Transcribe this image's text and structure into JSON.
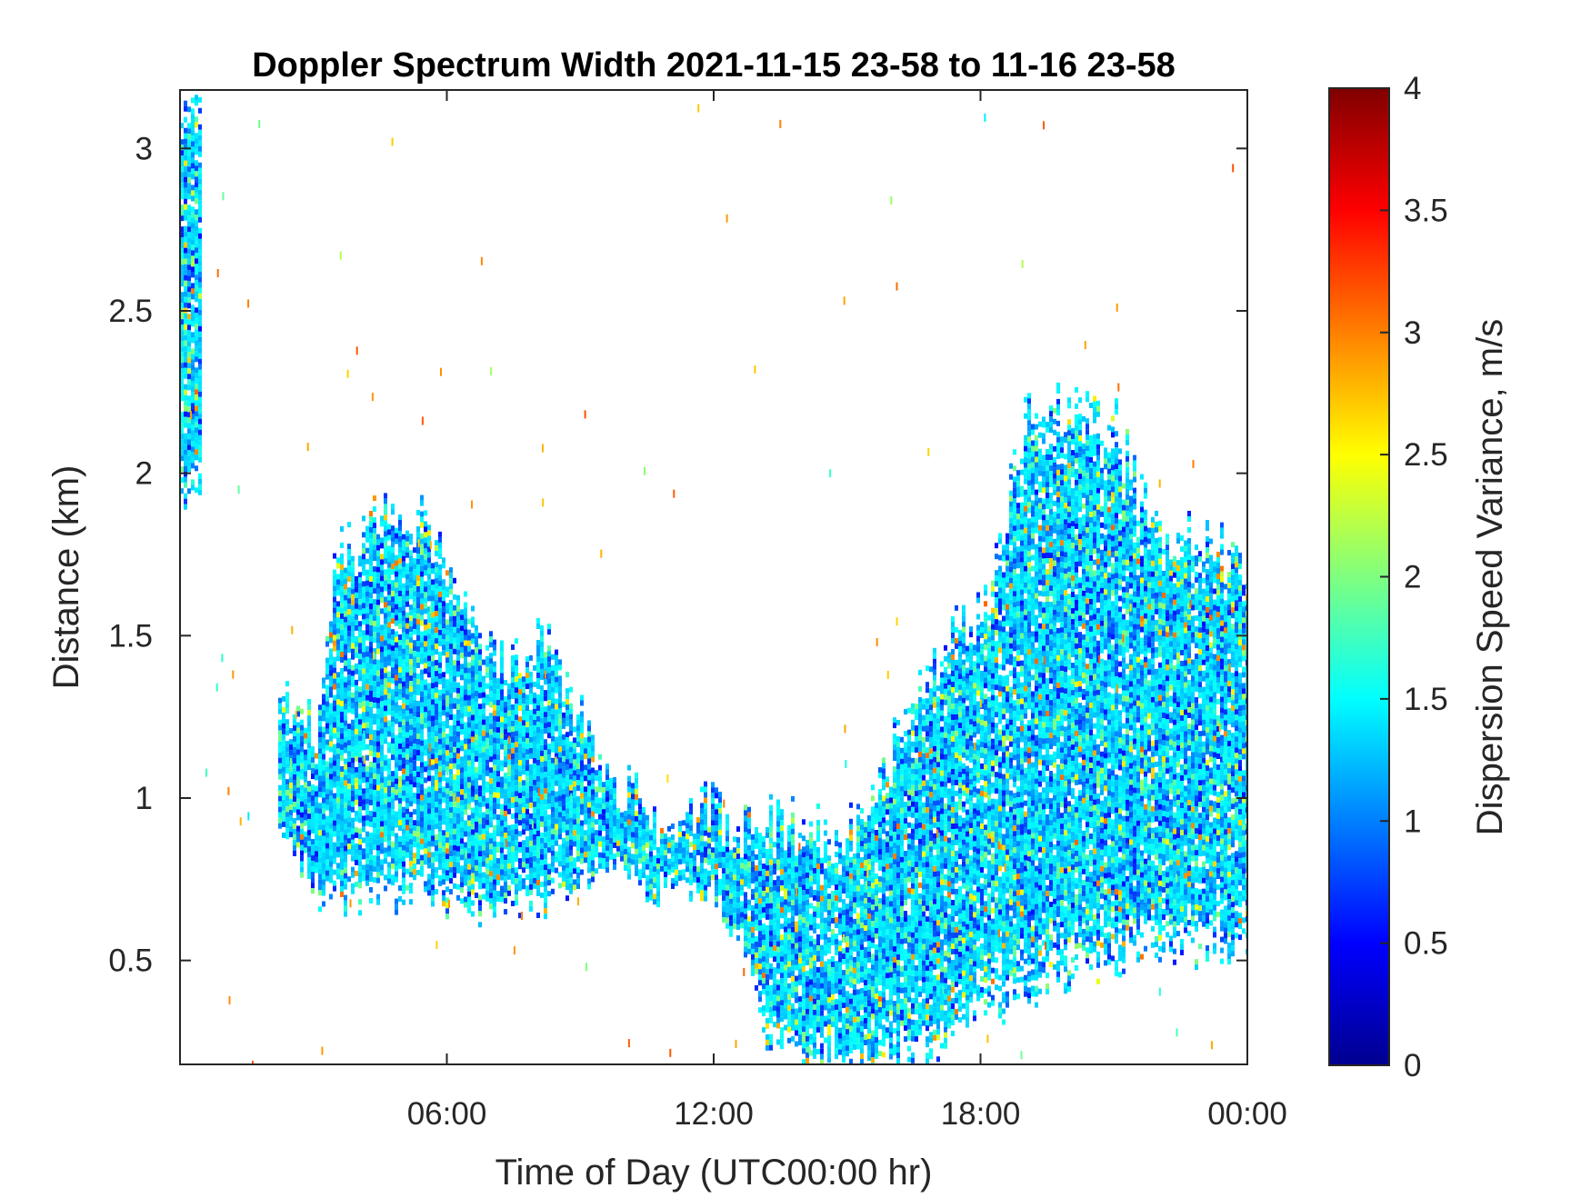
{
  "chart_data": {
    "type": "heatmap",
    "title": "Doppler Spectrum Width 2021-11-15 23-58 to 11-16 23-58",
    "xlabel": "Time of Day (UTC00:00 hr)",
    "ylabel": "Distance (km)",
    "colorbar_label": "Dispersion Speed Variance, m/s",
    "colormap": "jet",
    "xlim_hours": [
      0,
      24
    ],
    "ylim_km": [
      0.18,
      3.18
    ],
    "clim": [
      0,
      4
    ],
    "x_ticks": [
      {
        "value": 6,
        "label": "06:00"
      },
      {
        "value": 12,
        "label": "12:00"
      },
      {
        "value": 18,
        "label": "18:00"
      },
      {
        "value": 24,
        "label": "00:00"
      }
    ],
    "y_ticks": [
      {
        "value": 0.5,
        "label": "0.5"
      },
      {
        "value": 1,
        "label": "1"
      },
      {
        "value": 1.5,
        "label": "1.5"
      },
      {
        "value": 2,
        "label": "2"
      },
      {
        "value": 2.5,
        "label": "2.5"
      },
      {
        "value": 3,
        "label": "3"
      }
    ],
    "colorbar_ticks": [
      {
        "value": 0,
        "label": "0"
      },
      {
        "value": 0.5,
        "label": "0.5"
      },
      {
        "value": 1,
        "label": "1"
      },
      {
        "value": 1.5,
        "label": "1.5"
      },
      {
        "value": 2,
        "label": "2"
      },
      {
        "value": 2.5,
        "label": "2.5"
      },
      {
        "value": 3,
        "label": "3"
      },
      {
        "value": 3.5,
        "label": "3.5"
      },
      {
        "value": 4,
        "label": "4"
      }
    ],
    "grid": false,
    "dominant_value_m_s": 1.3,
    "echo_extent": [
      {
        "hour": 0.0,
        "bottom_km": 1.9,
        "top_km": 3.15
      },
      {
        "hour": 2.3,
        "bottom_km": 0.9,
        "top_km": 1.3
      },
      {
        "hour": 3.0,
        "bottom_km": 0.7,
        "top_km": 1.2
      },
      {
        "hour": 3.5,
        "bottom_km": 0.7,
        "top_km": 1.75
      },
      {
        "hour": 4.5,
        "bottom_km": 0.7,
        "top_km": 1.95
      },
      {
        "hour": 5.5,
        "bottom_km": 0.7,
        "top_km": 1.85
      },
      {
        "hour": 6.5,
        "bottom_km": 0.65,
        "top_km": 1.55
      },
      {
        "hour": 7.5,
        "bottom_km": 0.65,
        "top_km": 1.4
      },
      {
        "hour": 8.2,
        "bottom_km": 0.7,
        "top_km": 1.5
      },
      {
        "hour": 9.0,
        "bottom_km": 0.75,
        "top_km": 1.25
      },
      {
        "hour": 9.7,
        "bottom_km": 0.8,
        "top_km": 1.05
      },
      {
        "hour": 10.5,
        "bottom_km": 0.7,
        "top_km": 1.0
      },
      {
        "hour": 11.0,
        "bottom_km": 0.75,
        "top_km": 0.85
      },
      {
        "hour": 11.8,
        "bottom_km": 0.7,
        "top_km": 1.0
      },
      {
        "hour": 12.5,
        "bottom_km": 0.6,
        "top_km": 0.88
      },
      {
        "hour": 13.2,
        "bottom_km": 0.25,
        "top_km": 0.95
      },
      {
        "hour": 14.0,
        "bottom_km": 0.2,
        "top_km": 0.9
      },
      {
        "hour": 15.0,
        "bottom_km": 0.2,
        "top_km": 0.9
      },
      {
        "hour": 16.0,
        "bottom_km": 0.2,
        "top_km": 1.2
      },
      {
        "hour": 17.0,
        "bottom_km": 0.2,
        "top_km": 1.5
      },
      {
        "hour": 18.0,
        "bottom_km": 0.35,
        "top_km": 1.55
      },
      {
        "hour": 19.0,
        "bottom_km": 0.4,
        "top_km": 2.2
      },
      {
        "hour": 20.0,
        "bottom_km": 0.45,
        "top_km": 2.2
      },
      {
        "hour": 21.0,
        "bottom_km": 0.5,
        "top_km": 2.15
      },
      {
        "hour": 22.0,
        "bottom_km": 0.5,
        "top_km": 1.8
      },
      {
        "hour": 23.0,
        "bottom_km": 0.55,
        "top_km": 1.8
      },
      {
        "hour": 24.0,
        "bottom_km": 0.55,
        "top_km": 1.75
      }
    ]
  }
}
